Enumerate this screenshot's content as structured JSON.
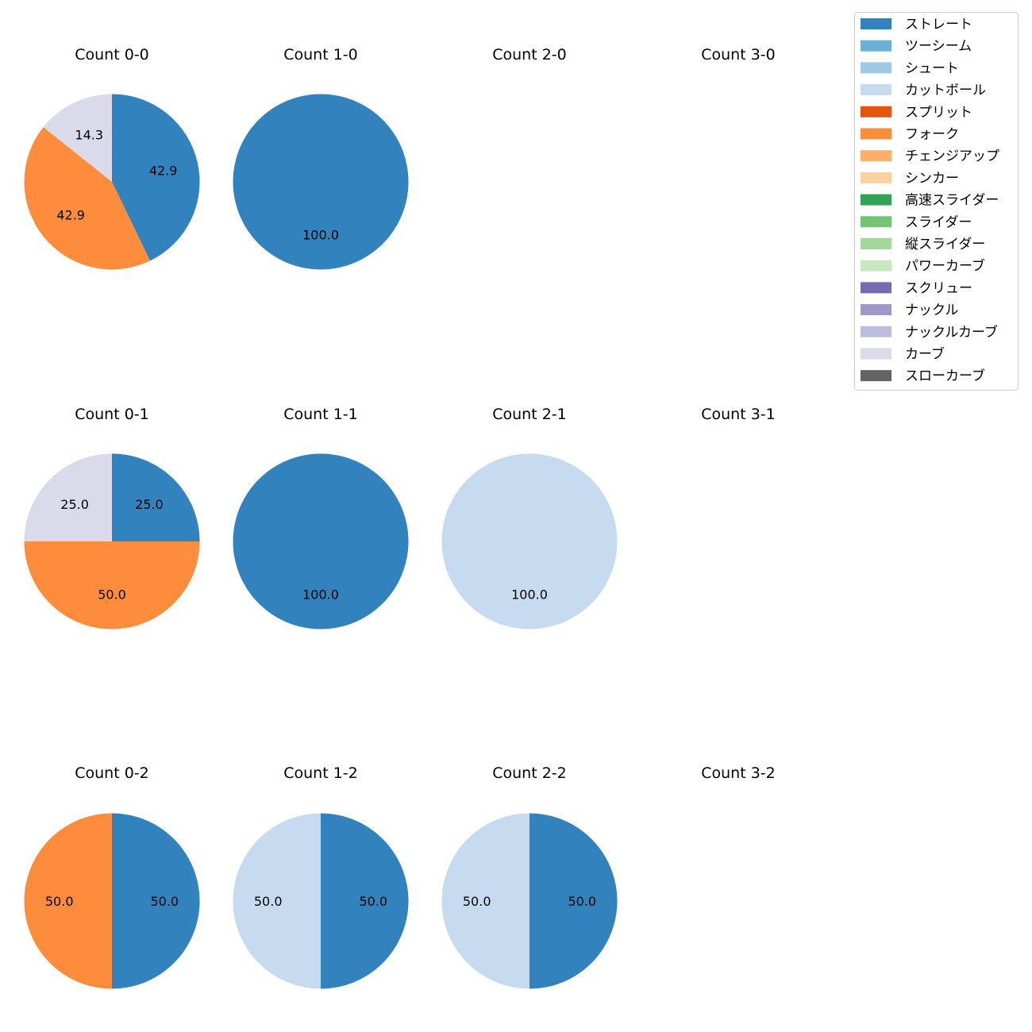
{
  "chart_data": {
    "type": "pie",
    "legend_position": "top-right",
    "legend": [
      {
        "label": "ストレート",
        "color": "#3182bd"
      },
      {
        "label": "ツーシーム",
        "color": "#6baed6"
      },
      {
        "label": "シュート",
        "color": "#9ecae1"
      },
      {
        "label": "カットボール",
        "color": "#c6dbef"
      },
      {
        "label": "スプリット",
        "color": "#e6550d"
      },
      {
        "label": "フォーク",
        "color": "#fd8d3c"
      },
      {
        "label": "チェンジアップ",
        "color": "#fdae6b"
      },
      {
        "label": "シンカー",
        "color": "#fdd0a2"
      },
      {
        "label": "高速スライダー",
        "color": "#31a354"
      },
      {
        "label": "スライダー",
        "color": "#74c476"
      },
      {
        "label": "縦スライダー",
        "color": "#a1d99b"
      },
      {
        "label": "パワーカーブ",
        "color": "#c7e9c0"
      },
      {
        "label": "スクリュー",
        "color": "#756bb1"
      },
      {
        "label": "ナックル",
        "color": "#9e9ac8"
      },
      {
        "label": "ナックルカーブ",
        "color": "#bcbddc"
      },
      {
        "label": "カーブ",
        "color": "#dadaeb"
      },
      {
        "label": "スローカーブ",
        "color": "#636363"
      }
    ],
    "panels": [
      {
        "title": "Count 0-0",
        "slices": [
          {
            "label": "ストレート",
            "value": 42.9
          },
          {
            "label": "フォーク",
            "value": 42.9
          },
          {
            "label": "カーブ",
            "value": 14.3
          }
        ]
      },
      {
        "title": "Count 1-0",
        "slices": [
          {
            "label": "ストレート",
            "value": 100.0
          }
        ]
      },
      {
        "title": "Count 2-0",
        "slices": []
      },
      {
        "title": "Count 3-0",
        "slices": []
      },
      {
        "title": "Count 0-1",
        "slices": [
          {
            "label": "ストレート",
            "value": 25.0
          },
          {
            "label": "フォーク",
            "value": 50.0
          },
          {
            "label": "カーブ",
            "value": 25.0
          }
        ]
      },
      {
        "title": "Count 1-1",
        "slices": [
          {
            "label": "ストレート",
            "value": 100.0
          }
        ]
      },
      {
        "title": "Count 2-1",
        "slices": [
          {
            "label": "カットボール",
            "value": 100.0
          }
        ]
      },
      {
        "title": "Count 3-1",
        "slices": []
      },
      {
        "title": "Count 0-2",
        "slices": [
          {
            "label": "ストレート",
            "value": 50.0
          },
          {
            "label": "フォーク",
            "value": 50.0
          }
        ]
      },
      {
        "title": "Count 1-2",
        "slices": [
          {
            "label": "ストレート",
            "value": 50.0
          },
          {
            "label": "カットボール",
            "value": 50.0
          }
        ]
      },
      {
        "title": "Count 2-2",
        "slices": [
          {
            "label": "ストレート",
            "value": 50.0
          },
          {
            "label": "カットボール",
            "value": 50.0
          }
        ]
      },
      {
        "title": "Count 3-2",
        "slices": []
      }
    ]
  }
}
